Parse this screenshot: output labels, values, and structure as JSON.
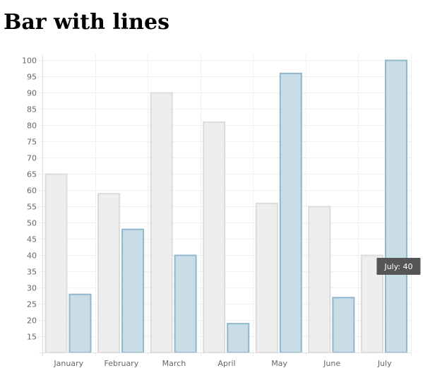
{
  "chart_data": {
    "type": "bar",
    "title": "Bar with lines",
    "xlabel": "",
    "ylabel": "",
    "categories": [
      "January",
      "February",
      "March",
      "April",
      "May",
      "June",
      "July"
    ],
    "series": [
      {
        "values": [
          65,
          59,
          90,
          81,
          56,
          55,
          40
        ],
        "fill": "#eeeeee",
        "stroke": "#dcdcdc"
      },
      {
        "values": [
          28,
          48,
          40,
          19,
          96,
          27,
          100
        ],
        "fill": "#c9dde7",
        "stroke": "#8fb7cd"
      }
    ],
    "ylim": [
      10,
      100
    ],
    "yticks": [
      15,
      20,
      25,
      30,
      35,
      40,
      45,
      50,
      55,
      60,
      65,
      70,
      75,
      80,
      85,
      90,
      95,
      100
    ],
    "grid": true,
    "gridColor": "#f0f0f0",
    "axisColor": "#e0e0e0",
    "tooltip": {
      "text": "July: 40",
      "background": "#555555"
    }
  }
}
